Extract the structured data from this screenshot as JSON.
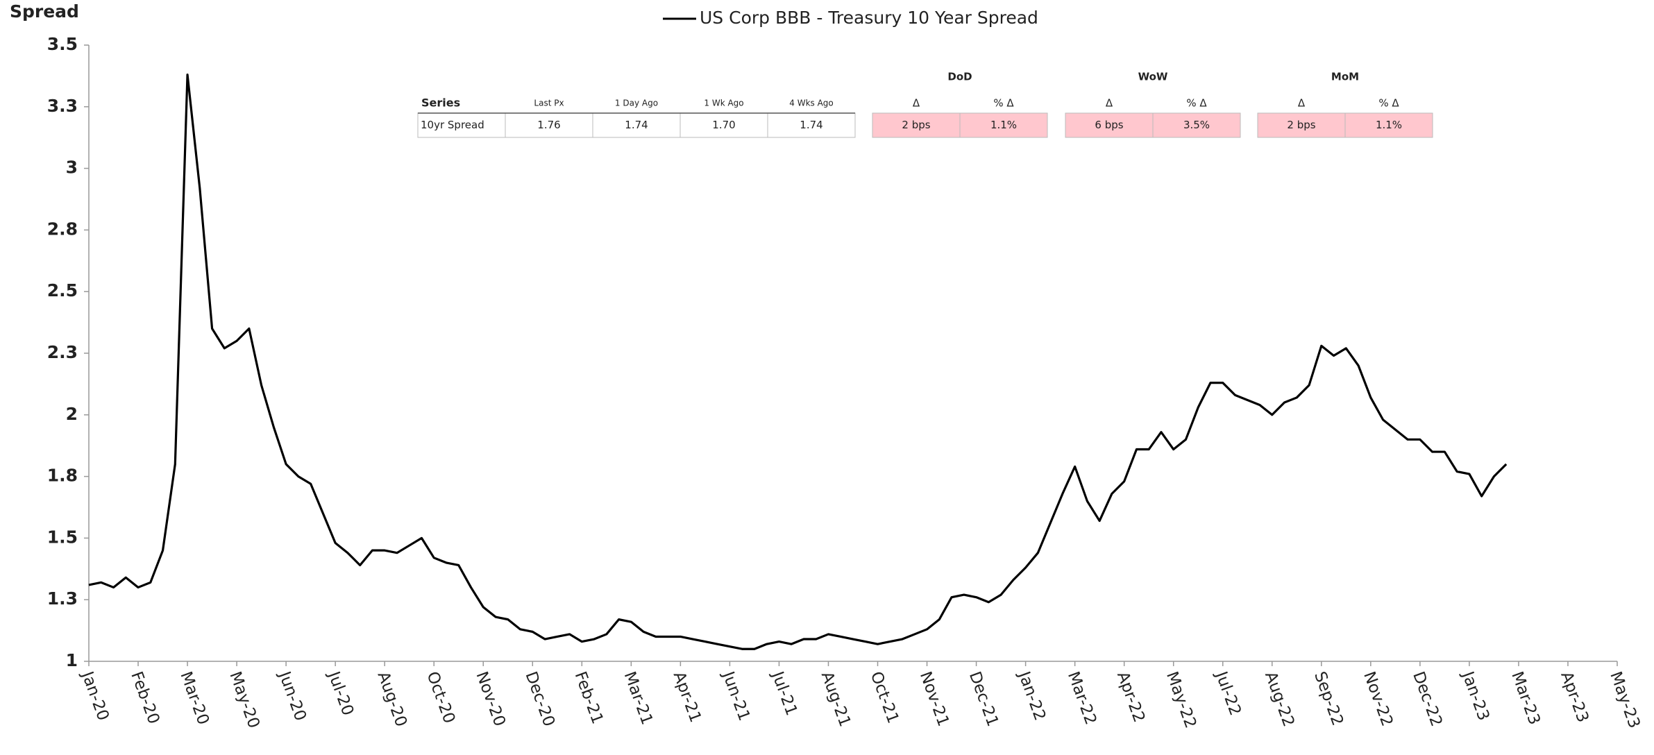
{
  "chart_data": {
    "type": "line",
    "y_label": "Spread",
    "categories": [
      "Jan-20",
      null,
      null,
      null,
      "Feb-20",
      null,
      null,
      null,
      "Mar-20",
      null,
      null,
      null,
      "May-20",
      null,
      null,
      null,
      "Jun-20",
      null,
      null,
      null,
      "Jul-20",
      null,
      null,
      null,
      "Aug-20",
      null,
      null,
      null,
      "Oct-20",
      null,
      null,
      null,
      "Nov-20",
      null,
      null,
      null,
      "Dec-20",
      null,
      null,
      null,
      "Feb-21",
      null,
      null,
      null,
      "Mar-21",
      null,
      null,
      null,
      "Apr-21",
      null,
      null,
      null,
      "Jun-21",
      null,
      null,
      null,
      "Jul-21",
      null,
      null,
      null,
      "Aug-21",
      null,
      null,
      null,
      "Oct-21",
      null,
      null,
      null,
      "Nov-21",
      null,
      null,
      null,
      "Dec-21",
      null,
      null,
      null,
      "Jan-22",
      null,
      null,
      null,
      "Mar-22",
      null,
      null,
      null,
      "Apr-22",
      null,
      null,
      null,
      "May-22",
      null,
      null,
      null,
      "Jul-22",
      null,
      null,
      null,
      "Aug-22",
      null,
      null,
      null,
      "Sep-22",
      null,
      null,
      null,
      "Nov-22",
      null,
      null,
      null,
      "Dec-22",
      null,
      null,
      null,
      "Jan-23",
      null,
      null,
      null,
      "Mar-23",
      null,
      null,
      null,
      "Apr-23",
      null,
      null,
      null,
      "May-23"
    ],
    "series": [
      {
        "name": "US Corp BBB - Treasury 10 Year Spread",
        "color": "#000000",
        "values": [
          1.31,
          1.32,
          1.3,
          1.34,
          1.3,
          1.32,
          1.45,
          1.8,
          3.38,
          2.92,
          2.35,
          2.27,
          2.3,
          2.35,
          2.12,
          1.95,
          1.8,
          1.75,
          1.72,
          1.6,
          1.48,
          1.44,
          1.39,
          1.45,
          1.45,
          1.44,
          1.47,
          1.5,
          1.42,
          1.4,
          1.39,
          1.3,
          1.22,
          1.18,
          1.17,
          1.13,
          1.12,
          1.09,
          1.1,
          1.11,
          1.08,
          1.09,
          1.11,
          1.17,
          1.16,
          1.12,
          1.1,
          1.1,
          1.1,
          1.09,
          1.08,
          1.07,
          1.06,
          1.05,
          1.05,
          1.07,
          1.08,
          1.07,
          1.09,
          1.09,
          1.11,
          1.1,
          1.09,
          1.08,
          1.07,
          1.08,
          1.09,
          1.11,
          1.13,
          1.17,
          1.26,
          1.27,
          1.26,
          1.24,
          1.27,
          1.33,
          1.38,
          1.44,
          1.56,
          1.68,
          1.79,
          1.65,
          1.57,
          1.68,
          1.73,
          1.86,
          1.86,
          1.93,
          1.86,
          1.9,
          2.03,
          2.13,
          2.13,
          2.08,
          2.06,
          2.04,
          2.0,
          2.05,
          2.07,
          2.12,
          2.28,
          2.24,
          2.27,
          2.2,
          2.07,
          1.98,
          1.94,
          1.9,
          1.9,
          1.85,
          1.85,
          1.77,
          1.76,
          1.67,
          1.75,
          1.8,
          null,
          null,
          null,
          null,
          null,
          null,
          null,
          null,
          null
        ]
      }
    ],
    "ylim": [
      1.0,
      3.5
    ],
    "yticks": [
      1.0,
      {
        "value": 1.25,
        "label": "1.3"
      },
      1.5,
      {
        "value": 1.75,
        "label": "1.8"
      },
      2.0,
      {
        "value": 2.25,
        "label": "2.3"
      },
      2.5,
      {
        "value": 2.75,
        "label": "2.8"
      },
      3.0,
      {
        "value": 3.25,
        "label": "3.3"
      },
      3.5
    ],
    "grid": false,
    "legend": "top"
  },
  "table": {
    "columns": [
      "Series",
      "Last Px",
      "1 Day Ago",
      "1 Wk Ago",
      "4 Wks Ago"
    ],
    "row": [
      "10yr Spread",
      "1.76",
      "1.74",
      "1.70",
      "1.74"
    ],
    "groups": [
      {
        "name": "DoD",
        "columns": [
          "Δ",
          "% Δ"
        ],
        "values": [
          "2 bps",
          "1.1%"
        ]
      },
      {
        "name": "WoW",
        "columns": [
          "Δ",
          "% Δ"
        ],
        "values": [
          "6 bps",
          "3.5%"
        ]
      },
      {
        "name": "MoM",
        "columns": [
          "Δ",
          "% Δ"
        ],
        "values": [
          "2 bps",
          "1.1%"
        ]
      }
    ]
  }
}
